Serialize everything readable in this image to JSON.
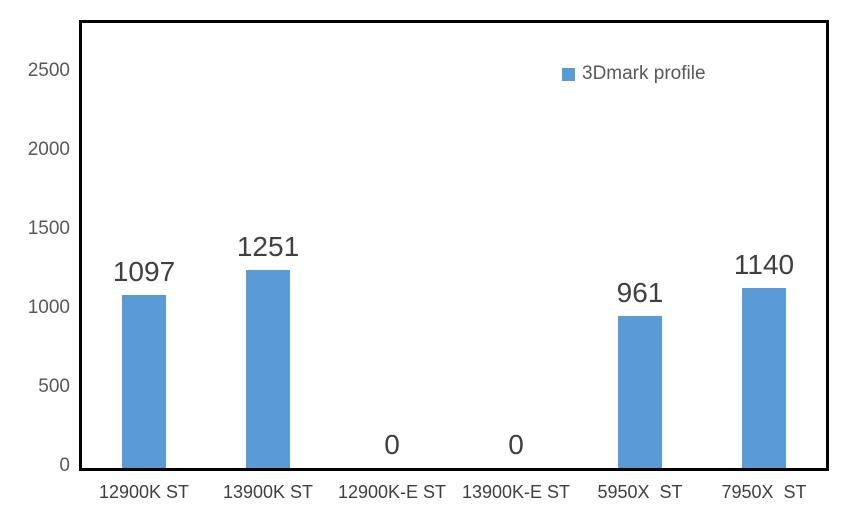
{
  "chart_data": {
    "type": "bar",
    "title": "",
    "xlabel": "",
    "ylabel": "",
    "categories": [
      "12900K ST",
      "13900K ST",
      "12900K-E ST",
      "13900K-E ST",
      "5950X  ST",
      "7950X  ST"
    ],
    "values": [
      1097,
      1251,
      0,
      0,
      961,
      1140
    ],
    "data_labels": [
      "1097",
      "1251",
      "0",
      "0",
      "961",
      "1140"
    ],
    "series_name": "3Dmark profile",
    "y_ticks": [
      0,
      500,
      1000,
      1500,
      2000,
      2500
    ],
    "ylim": [
      0,
      2816
    ],
    "grid": false,
    "legend_position": "top-right-inside",
    "colors": {
      "bar": "#5B9BD5",
      "tick_label": "#595959",
      "category_label": "#404040",
      "data_label": "#404040",
      "legend_label": "#595959",
      "plot_border": "#000000",
      "background": "#FFFFFF"
    }
  }
}
